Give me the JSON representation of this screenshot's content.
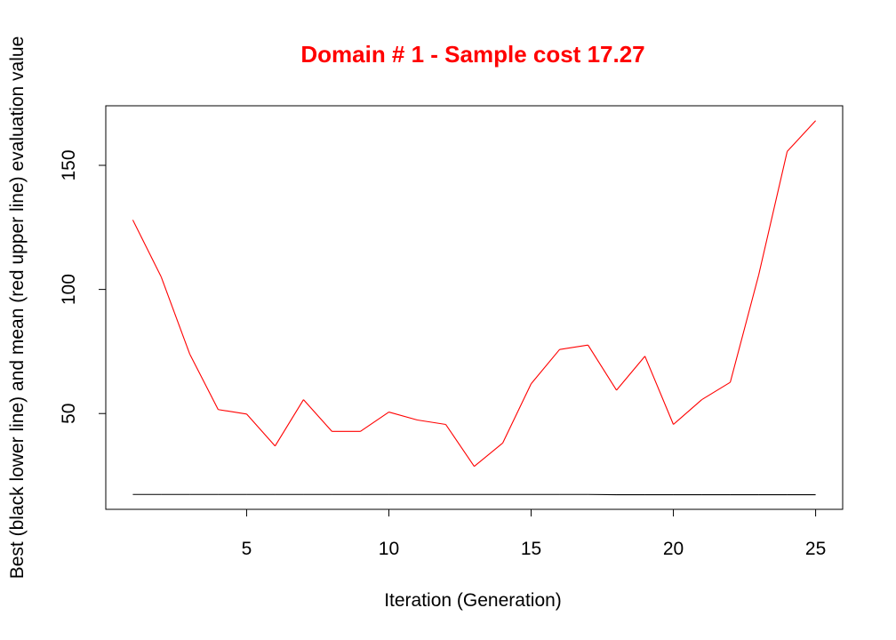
{
  "chart_data": {
    "type": "line",
    "title": "Domain # 1  - Sample cost 17.27",
    "xlabel": "Iteration (Generation)",
    "ylabel": "Best (black lower line) and mean (red upper line) evaluation value",
    "xlim": [
      0.05,
      25.95
    ],
    "ylim": [
      11.4,
      174
    ],
    "xticks": [
      5,
      10,
      15,
      20,
      25
    ],
    "yticks": [
      50,
      100,
      150
    ],
    "grid": false,
    "colors": {
      "title": "#ff0000",
      "mean": "#ff0000",
      "best": "#000000",
      "axes": "#000000"
    },
    "x": [
      1,
      2,
      3,
      4,
      5,
      6,
      7,
      8,
      9,
      10,
      11,
      12,
      13,
      14,
      15,
      16,
      17,
      18,
      19,
      20,
      21,
      22,
      23,
      24,
      25
    ],
    "series": [
      {
        "name": "mean",
        "color": "#ff0000",
        "values": [
          128,
          105,
          74,
          51.6,
          49.8,
          36.9,
          55.6,
          42.8,
          42.8,
          50.6,
          47.4,
          45.6,
          28.7,
          38.1,
          62,
          75.8,
          77.6,
          59.4,
          73.1,
          45.6,
          55.6,
          62.6,
          105.9,
          155.6,
          168
        ]
      },
      {
        "name": "best",
        "color": "#000000",
        "values": [
          17.4,
          17.4,
          17.4,
          17.4,
          17.4,
          17.4,
          17.4,
          17.4,
          17.4,
          17.4,
          17.4,
          17.4,
          17.4,
          17.4,
          17.4,
          17.4,
          17.4,
          17.27,
          17.27,
          17.27,
          17.27,
          17.27,
          17.27,
          17.27,
          17.27
        ]
      }
    ]
  }
}
